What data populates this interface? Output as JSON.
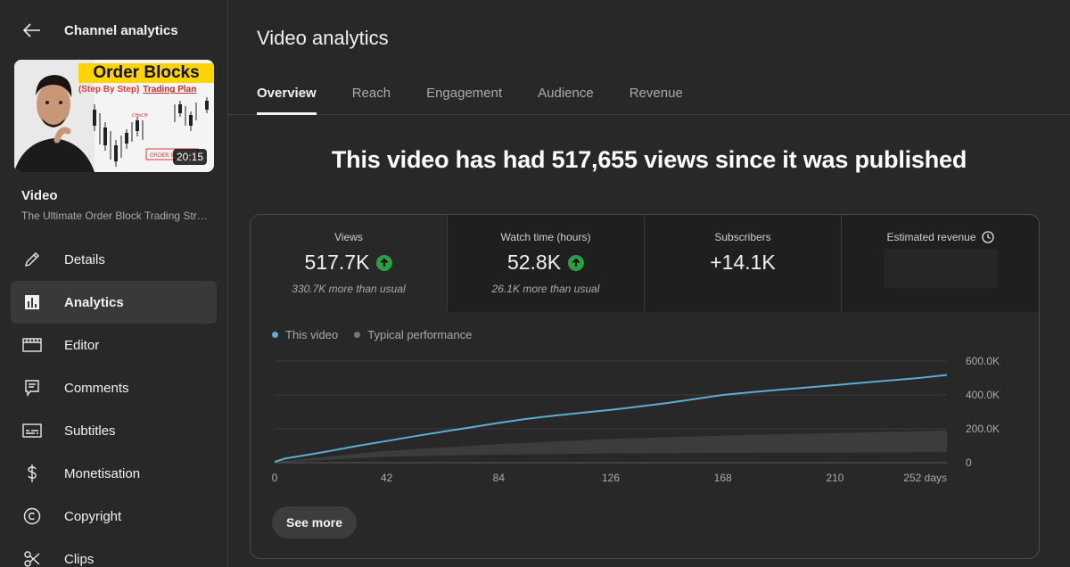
{
  "sidebar": {
    "title": "Channel analytics",
    "thumbnail": {
      "title": "Order Blocks",
      "subtitle": "(Step By Step)",
      "subtitle_accent": "Trading Plan",
      "duration": "20:15"
    },
    "video_label": "Video",
    "video_name": "The Ultimate Order Block Trading Strategy",
    "items": [
      {
        "label": "Details",
        "icon": "pencil-icon"
      },
      {
        "label": "Analytics",
        "icon": "analytics-icon",
        "active": true
      },
      {
        "label": "Editor",
        "icon": "film-icon"
      },
      {
        "label": "Comments",
        "icon": "comment-icon"
      },
      {
        "label": "Subtitles",
        "icon": "subtitles-icon"
      },
      {
        "label": "Monetisation",
        "icon": "dollar-icon"
      },
      {
        "label": "Copyright",
        "icon": "copyright-icon"
      },
      {
        "label": "Clips",
        "icon": "scissors-icon"
      }
    ]
  },
  "main": {
    "title": "Video analytics",
    "tabs": [
      "Overview",
      "Reach",
      "Engagement",
      "Audience",
      "Revenue"
    ],
    "active_tab": "Overview",
    "headline": "This video has had 517,655 views since it was published",
    "metrics": [
      {
        "label": "Views",
        "value": "517.7K",
        "sub": "330.7K more than usual",
        "trend": "up"
      },
      {
        "label": "Watch time (hours)",
        "value": "52.8K",
        "sub": "26.1K more than usual",
        "trend": "up"
      },
      {
        "label": "Subscribers",
        "value": "+14.1K"
      },
      {
        "label": "Estimated revenue",
        "icon": "clock-icon"
      }
    ],
    "see_more": "See more"
  },
  "colors": {
    "accent_line": "#5aaed4",
    "typical": "#777777",
    "up_badge": "#2e9e44"
  },
  "chart_data": {
    "type": "line",
    "legend": [
      "This video",
      "Typical performance"
    ],
    "x_ticks": [
      "0",
      "42",
      "84",
      "126",
      "168",
      "210",
      "252 days"
    ],
    "y_ticks": [
      "600.0K",
      "400.0K",
      "200.0K",
      "0"
    ],
    "xlim": [
      0,
      252
    ],
    "ylim": [
      0,
      600000
    ],
    "series": [
      {
        "name": "This video",
        "x": [
          0,
          4,
          10,
          21,
          32,
          42,
          52,
          63,
          74,
          84,
          94,
          105,
          116,
          126,
          136,
          147,
          158,
          168,
          178,
          189,
          200,
          210,
          220,
          231,
          242,
          252
        ],
        "y": [
          5000,
          25000,
          40000,
          70000,
          102000,
          128000,
          155000,
          183000,
          210000,
          235000,
          258000,
          278000,
          296000,
          312000,
          330000,
          352000,
          377000,
          400000,
          415000,
          430000,
          445000,
          458000,
          472000,
          486000,
          501000,
          518000
        ]
      }
    ],
    "typical_band": {
      "name": "Typical performance",
      "x": [
        0,
        42,
        84,
        126,
        168,
        210,
        252
      ],
      "low": [
        0,
        35000,
        48000,
        55000,
        58000,
        60000,
        62000
      ],
      "high": [
        5000,
        70000,
        110000,
        140000,
        160000,
        175000,
        190000
      ]
    }
  }
}
